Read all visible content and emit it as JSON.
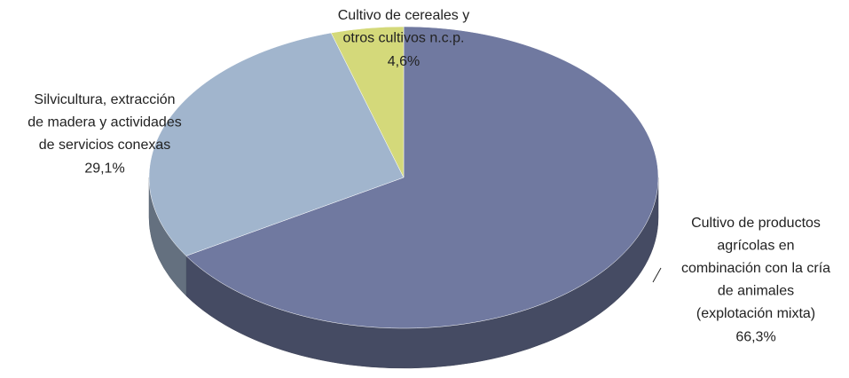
{
  "chart_data": {
    "type": "pie",
    "categories": [
      "Cultivo de productos\nagrícolas en\ncombinación con la cría\nde animales\n(explotación mixta)",
      "Silvicultura, extracción\nde madera y actividades\nde servicios conexas",
      "Cultivo de cereales y\notros cultivos n.c.p."
    ],
    "values": [
      66.3,
      29.1,
      4.6
    ],
    "value_labels": [
      "66,3%",
      "29,1%",
      "4,6%"
    ],
    "colors": [
      "#7079a0",
      "#a1b5cd",
      "#d4d97a"
    ]
  }
}
